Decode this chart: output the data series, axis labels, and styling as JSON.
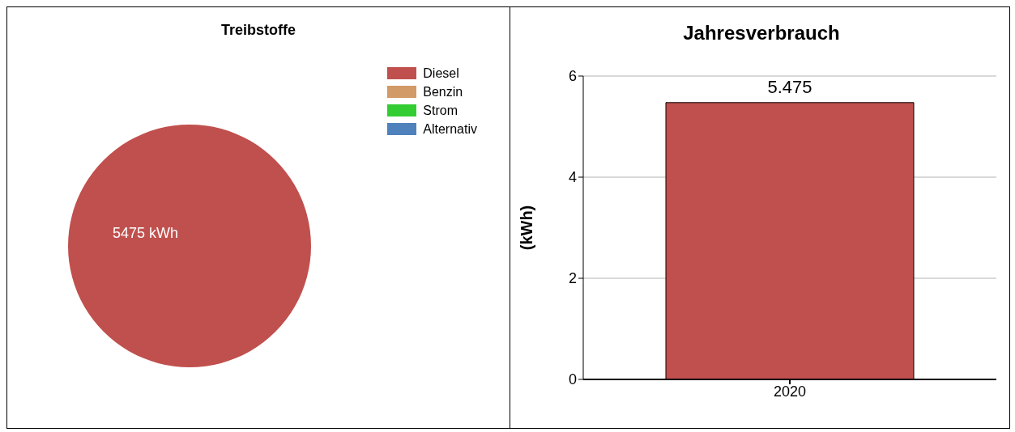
{
  "chart_data": [
    {
      "type": "pie",
      "title": "Treibstoffe",
      "categories": [
        "Diesel",
        "Benzin",
        "Strom",
        "Alternativ"
      ],
      "values": [
        5475,
        0,
        0,
        0
      ],
      "colors": [
        "#c0504d",
        "#d19a66",
        "#33cc33",
        "#4f81bd"
      ],
      "value_labels": [
        "5475 kWh",
        null,
        null,
        null
      ],
      "legend": "top right"
    },
    {
      "type": "bar",
      "title": "Jahresverbrauch",
      "ylabel": "(kWh)",
      "categories": [
        "2020"
      ],
      "values": [
        5.475
      ],
      "color": "#c0504d",
      "ylim": [
        0,
        6
      ],
      "yticks": [
        0,
        2,
        4,
        6
      ],
      "grid": "y",
      "data_labels": true
    }
  ]
}
